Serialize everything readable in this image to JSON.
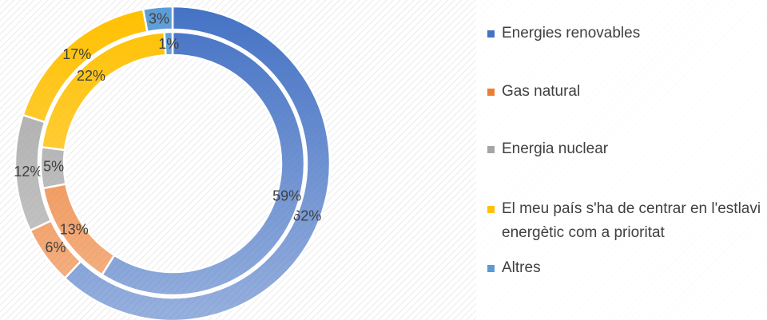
{
  "chart_data": {
    "type": "doughnut",
    "categories": [
      "Energies renovables",
      "Gas natural",
      "Energia nuclear",
      "El meu país s'ha de centrar en l'estlavi energètic com a prioritat",
      "Altres"
    ],
    "colors": [
      "#4472c4",
      "#ed7d31",
      "#a5a5a5",
      "#ffc000",
      "#5b9bd5"
    ],
    "series": [
      {
        "values": [
          62,
          6,
          12,
          17,
          3
        ],
        "value_labels": [
          "62%",
          "6%",
          "12%",
          "17%",
          "3%"
        ]
      },
      {
        "values": [
          59,
          13,
          5,
          22,
          1
        ],
        "value_labels": [
          "59%",
          "13%",
          "5%",
          "22%",
          "1%"
        ]
      }
    ],
    "legend": "right"
  }
}
